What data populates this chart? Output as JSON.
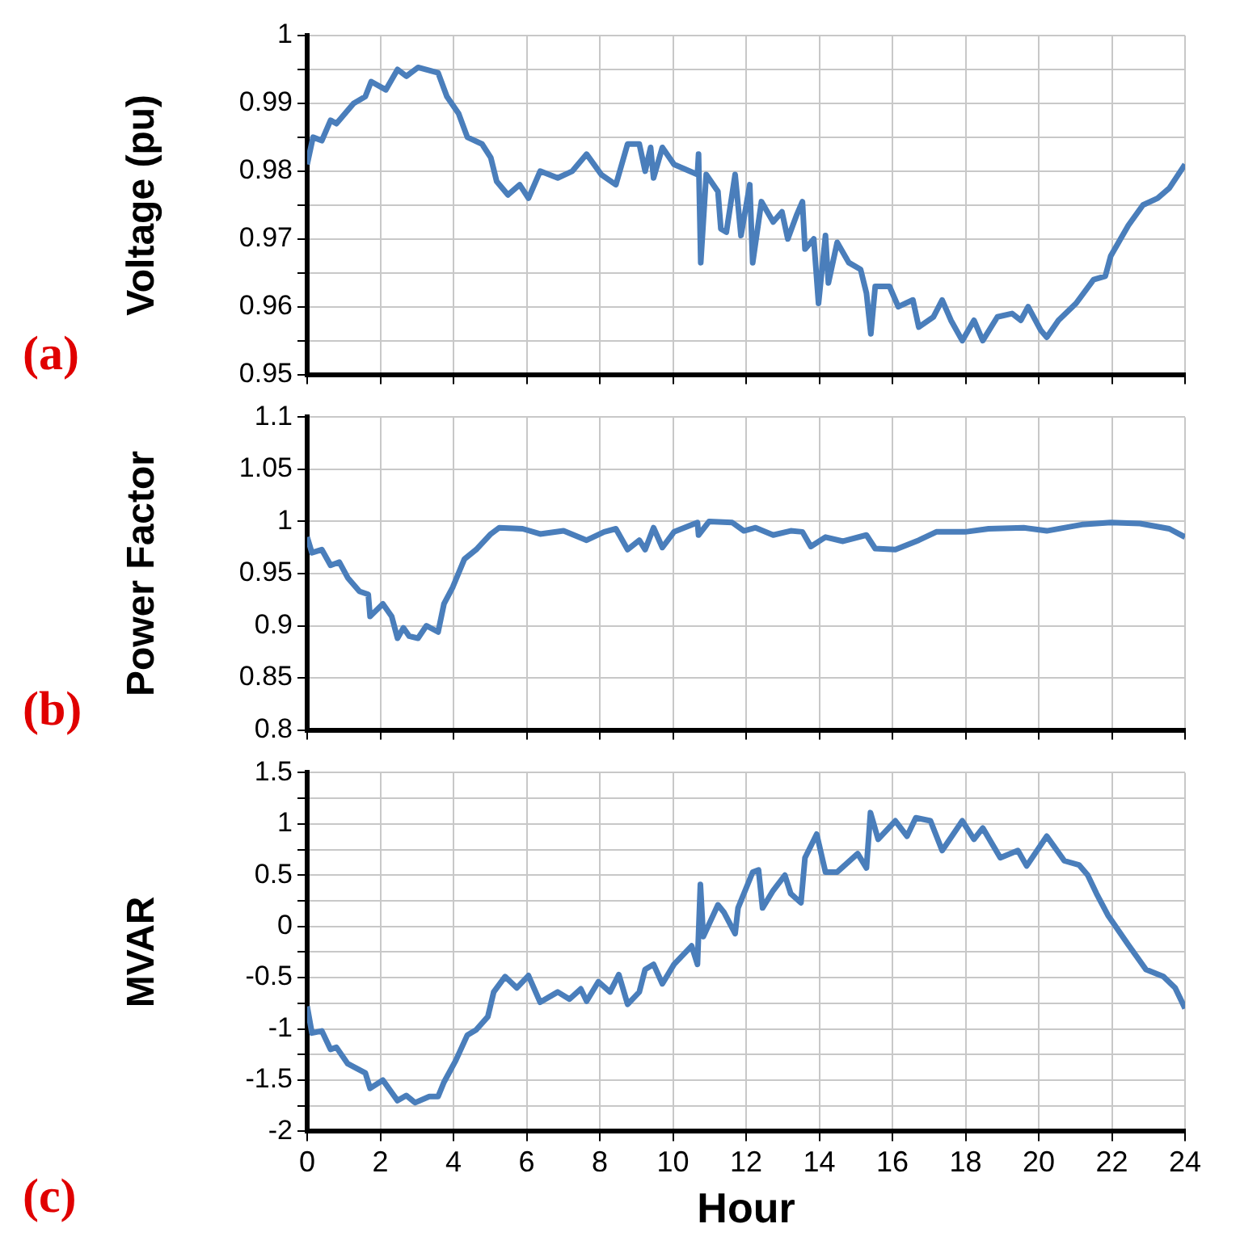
{
  "chart_data": [
    {
      "type": "line",
      "ylabel": "Voltage (pu)",
      "annotations": [
        "(a)"
      ],
      "xlim": [
        0,
        24
      ],
      "xticks": [
        0,
        2,
        4,
        6,
        8,
        10,
        12,
        14,
        16,
        18,
        20,
        22,
        24
      ],
      "ylim": [
        0.95,
        1
      ],
      "yticks": [
        0.95,
        {
          "value": 0.955,
          "label": null
        },
        0.96,
        {
          "value": 0.965,
          "label": null
        },
        0.97,
        {
          "value": 0.975,
          "label": null
        },
        0.98,
        {
          "value": 0.985,
          "label": null
        },
        0.99,
        {
          "value": 0.995,
          "label": null
        },
        1
      ],
      "tick_labels": "y",
      "grid": true,
      "x": [
        0,
        0.16,
        0.4,
        0.64,
        0.8,
        1.27,
        1.59,
        1.75,
        2.15,
        2.47,
        2.71,
        3.03,
        3.58,
        3.82,
        4.14,
        4.38,
        4.78,
        5.02,
        5.18,
        5.49,
        5.81,
        6.05,
        6.37,
        6.85,
        7.25,
        7.64,
        8.04,
        8.44,
        8.76,
        9.08,
        9.24,
        9.39,
        9.47,
        9.71,
        10.03,
        10.67,
        10.7,
        10.76,
        10.91,
        11.23,
        11.31,
        11.46,
        11.7,
        11.86,
        12.1,
        12.18,
        12.42,
        12.74,
        12.98,
        13.14,
        13.38,
        13.54,
        13.61,
        13.85,
        13.98,
        14.17,
        14.25,
        14.49,
        14.81,
        15.13,
        15.29,
        15.41,
        15.53,
        15.92,
        16.16,
        16.56,
        16.72,
        17.12,
        17.36,
        17.6,
        17.91,
        18.23,
        18.47,
        18.87,
        19.27,
        19.51,
        19.71,
        20.06,
        20.22,
        20.54,
        21.02,
        21.5,
        21.82,
        21.97,
        22.45,
        22.85,
        23.25,
        23.57,
        24
      ],
      "series": [
        {
          "color": "#4a7ebb",
          "values": [
            0.981,
            0.985,
            0.9845,
            0.9875,
            0.987,
            0.99,
            0.991,
            0.9932,
            0.992,
            0.995,
            0.994,
            0.9953,
            0.9945,
            0.991,
            0.9885,
            0.985,
            0.984,
            0.982,
            0.9785,
            0.9765,
            0.978,
            0.976,
            0.98,
            0.979,
            0.98,
            0.9825,
            0.9795,
            0.978,
            0.984,
            0.984,
            0.98,
            0.9835,
            0.979,
            0.9835,
            0.981,
            0.9795,
            0.9825,
            0.9665,
            0.9795,
            0.977,
            0.9715,
            0.971,
            0.9795,
            0.9705,
            0.978,
            0.9665,
            0.9755,
            0.9725,
            0.974,
            0.97,
            0.9735,
            0.9755,
            0.9685,
            0.97,
            0.9605,
            0.9705,
            0.9635,
            0.9695,
            0.9665,
            0.9655,
            0.962,
            0.956,
            0.963,
            0.963,
            0.96,
            0.961,
            0.957,
            0.9585,
            0.961,
            0.958,
            0.955,
            0.958,
            0.955,
            0.9585,
            0.959,
            0.958,
            0.96,
            0.9565,
            0.9555,
            0.958,
            0.9605,
            0.964,
            0.9645,
            0.9675,
            0.972,
            0.975,
            0.976,
            0.9775,
            0.981
          ]
        }
      ]
    },
    {
      "type": "line",
      "ylabel": "Power Factor",
      "annotations": [
        "(b)"
      ],
      "xlim": [
        0,
        24
      ],
      "xticks": [
        0,
        2,
        4,
        6,
        8,
        10,
        12,
        14,
        16,
        18,
        20,
        22,
        24
      ],
      "ylim": [
        0.8,
        1.1
      ],
      "yticks": [
        0.8,
        0.85,
        0.9,
        0.95,
        1,
        1.05,
        1.1
      ],
      "tick_labels": "y",
      "grid": true,
      "x": [
        0,
        0.13,
        0.4,
        0.64,
        0.88,
        1.11,
        1.43,
        1.67,
        1.72,
        2.07,
        2.31,
        2.47,
        2.63,
        2.79,
        3.03,
        3.26,
        3.58,
        3.74,
        3.98,
        4.3,
        4.62,
        5.02,
        5.25,
        5.89,
        6.37,
        7.01,
        7.64,
        8.12,
        8.44,
        8.76,
        9.08,
        9.24,
        9.47,
        9.71,
        10.03,
        10.67,
        10.7,
        10.99,
        11.62,
        11.94,
        12.26,
        12.74,
        13.22,
        13.54,
        13.77,
        14.17,
        14.65,
        15.29,
        15.53,
        16.08,
        16.72,
        17.2,
        17.99,
        18.63,
        19.59,
        20.22,
        21.18,
        21.97,
        22.77,
        23.57,
        24
      ],
      "series": [
        {
          "color": "#4a7ebb",
          "values": [
            0.985,
            0.97,
            0.973,
            0.958,
            0.961,
            0.946,
            0.933,
            0.93,
            0.909,
            0.921,
            0.909,
            0.888,
            0.898,
            0.89,
            0.888,
            0.9,
            0.894,
            0.921,
            0.937,
            0.964,
            0.973,
            0.988,
            0.994,
            0.993,
            0.988,
            0.991,
            0.982,
            0.99,
            0.993,
            0.973,
            0.982,
            0.973,
            0.994,
            0.975,
            0.99,
            0.999,
            0.987,
            1,
            0.999,
            0.991,
            0.994,
            0.987,
            0.991,
            0.99,
            0.976,
            0.985,
            0.981,
            0.987,
            0.974,
            0.973,
            0.982,
            0.99,
            0.99,
            0.993,
            0.994,
            0.991,
            0.997,
            0.999,
            0.998,
            0.993,
            0.985
          ]
        }
      ]
    },
    {
      "type": "line",
      "ylabel": "MVAR",
      "xlabel": "Hour",
      "annotations": [
        "(c)"
      ],
      "xlim": [
        0,
        24
      ],
      "xticks": [
        0,
        2,
        4,
        6,
        8,
        10,
        12,
        14,
        16,
        18,
        20,
        22,
        24
      ],
      "ylim": [
        -2,
        1.5
      ],
      "yticks": [
        -2,
        {
          "value": -1.75,
          "label": null
        },
        -1.5,
        {
          "value": -1.25,
          "label": null
        },
        -1,
        {
          "value": -0.75,
          "label": null
        },
        -0.5,
        {
          "value": -0.25,
          "label": null
        },
        0,
        {
          "value": 0.25,
          "label": null
        },
        0.5,
        {
          "value": 0.75,
          "label": null
        },
        1,
        {
          "value": 1.25,
          "label": null
        },
        1.5
      ],
      "grid": true,
      "x": [
        0,
        0.13,
        0.4,
        0.64,
        0.8,
        1.11,
        1.59,
        1.72,
        2.07,
        2.47,
        2.71,
        2.95,
        3.34,
        3.58,
        3.74,
        4.06,
        4.38,
        4.62,
        4.94,
        5.1,
        5.41,
        5.73,
        6.05,
        6.37,
        6.85,
        7.17,
        7.48,
        7.64,
        7.96,
        8.28,
        8.52,
        8.76,
        9.08,
        9.24,
        9.47,
        9.71,
        10.03,
        10.51,
        10.67,
        10.75,
        10.83,
        11.23,
        11.39,
        11.7,
        11.78,
        12.18,
        12.34,
        12.45,
        12.74,
        13.06,
        13.22,
        13.5,
        13.61,
        13.93,
        14.17,
        14.49,
        15.05,
        15.29,
        15.4,
        15.61,
        16.08,
        16.4,
        16.64,
        17.04,
        17.36,
        17.91,
        18.23,
        18.47,
        18.95,
        19.43,
        19.67,
        20.22,
        20.7,
        21.1,
        21.34,
        21.58,
        21.89,
        22.45,
        22.93,
        23.41,
        23.73,
        24
      ],
      "series": [
        {
          "color": "#4a7ebb",
          "values": [
            -0.78,
            -1.04,
            -1.02,
            -1.2,
            -1.18,
            -1.34,
            -1.43,
            -1.58,
            -1.5,
            -1.7,
            -1.65,
            -1.72,
            -1.66,
            -1.66,
            -1.52,
            -1.31,
            -1.06,
            -1.01,
            -0.88,
            -0.64,
            -0.49,
            -0.6,
            -0.48,
            -0.74,
            -0.64,
            -0.71,
            -0.61,
            -0.73,
            -0.54,
            -0.64,
            -0.47,
            -0.76,
            -0.64,
            -0.42,
            -0.37,
            -0.56,
            -0.37,
            -0.19,
            -0.37,
            0.41,
            -0.1,
            0.21,
            0.14,
            -0.07,
            0.18,
            0.53,
            0.55,
            0.18,
            0.35,
            0.5,
            0.32,
            0.23,
            0.67,
            0.9,
            0.53,
            0.53,
            0.71,
            0.57,
            1.11,
            0.85,
            1.03,
            0.88,
            1.06,
            1.03,
            0.74,
            1.03,
            0.85,
            0.96,
            0.67,
            0.74,
            0.59,
            0.88,
            0.64,
            0.6,
            0.5,
            0.32,
            0.11,
            -0.18,
            -0.42,
            -0.49,
            -0.6,
            -0.8
          ]
        }
      ]
    }
  ]
}
